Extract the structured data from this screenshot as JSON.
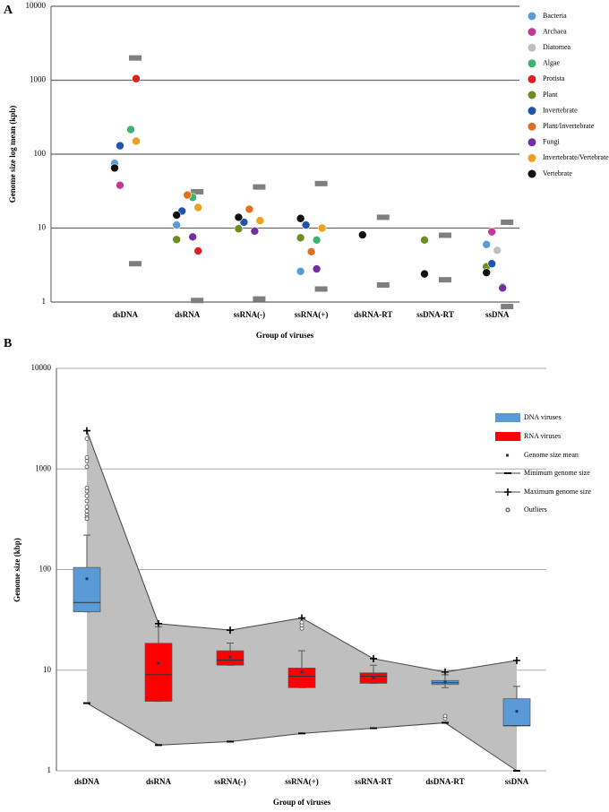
{
  "chart_data": [
    {
      "type": "scatter",
      "panel_label": "A",
      "y_label": "Genome size log mean (kpb)",
      "x_label": "Group of viruses",
      "categories": [
        "dsDNA",
        "dsRNA",
        "ssRNA(-)",
        "ssRNA(+)",
        "dsRNA-RT",
        "ssDNA-RT",
        "ssDNA"
      ],
      "log_scale": true,
      "grid": true,
      "legend_position": "right",
      "ylim": [
        1,
        10000
      ],
      "yticks": [
        1,
        10,
        100,
        1000,
        10000
      ],
      "range_color": "#7f7f7f",
      "range_max": [
        2000,
        31,
        36,
        40,
        14,
        8,
        12
      ],
      "range_min": [
        3.3,
        1.05,
        1.1,
        1.5,
        1.7,
        2,
        0.87
      ],
      "series": [
        {
          "name": "Bacteria",
          "color": "#5b9bd5",
          "values": [
            75,
            11,
            null,
            2.6,
            null,
            null,
            6
          ]
        },
        {
          "name": "Archaea",
          "color": "#c0399a",
          "values": [
            38,
            null,
            null,
            null,
            null,
            null,
            8.9
          ]
        },
        {
          "name": "Diatomea",
          "color": "#bfbfbf",
          "values": [
            null,
            null,
            null,
            null,
            null,
            null,
            5
          ]
        },
        {
          "name": "Algae",
          "color": "#3cb371",
          "values": [
            215,
            26,
            null,
            6.9,
            null,
            null,
            1.6
          ]
        },
        {
          "name": "Protista",
          "color": "#e02020",
          "values": [
            1050,
            4.9,
            null,
            null,
            null,
            null,
            null
          ]
        },
        {
          "name": "Plant",
          "color": "#6b8e23",
          "values": [
            null,
            7,
            9.8,
            7.4,
            null,
            6.9,
            3
          ]
        },
        {
          "name": "Invertebrate",
          "color": "#2255aa",
          "values": [
            130,
            17,
            12,
            11,
            null,
            null,
            3.3
          ]
        },
        {
          "name": "Plant/Invertebrate",
          "color": "#e07020",
          "values": [
            null,
            28,
            18,
            4.8,
            null,
            null,
            null
          ]
        },
        {
          "name": "Fungi",
          "color": "#7030a0",
          "values": [
            null,
            7.6,
            9.1,
            2.8,
            null,
            null,
            1.55
          ]
        },
        {
          "name": "Invertebrate/Vertebrate",
          "color": "#f0a020",
          "values": [
            150,
            19,
            12.6,
            10,
            null,
            null,
            null
          ]
        },
        {
          "name": "Vertebrate",
          "color": "#111111",
          "values": [
            65,
            15,
            14,
            13.5,
            8.1,
            2.4,
            2.5
          ]
        }
      ]
    },
    {
      "type": "box",
      "panel_label": "B",
      "y_label": "Genome size (kbp)",
      "x_label": "Group of viruses",
      "categories": [
        "dsDNA",
        "dsRNA",
        "ssRNA(-)",
        "ssRNA(+)",
        "ssRNA-RT",
        "dsDNA-RT",
        "ssDNA"
      ],
      "log_scale": true,
      "grid": true,
      "legend_position": "right",
      "ylim": [
        1,
        10000
      ],
      "yticks": [
        1,
        10,
        100,
        1000,
        10000
      ],
      "area_color": "#bfbfbf",
      "box_series": [
        {
          "name": "DNA viruses",
          "color": "#5b9bd5",
          "boxes": [
            {
              "whislo": 38,
              "q1": 38,
              "med": 47,
              "q3": 105,
              "whishi": 220,
              "mean": 81
            },
            null,
            null,
            null,
            null,
            {
              "whislo": 6.7,
              "q1": 7.2,
              "med": 7.5,
              "q3": 7.9,
              "whishi": 9,
              "mean": 7.6
            },
            {
              "whislo": 2.8,
              "q1": 2.8,
              "med": 2.8,
              "q3": 5.2,
              "whishi": 6.9,
              "mean": 3.9
            }
          ]
        },
        {
          "name": "RNA viruses",
          "color": "#ff0000",
          "boxes": [
            null,
            {
              "whislo": 4.9,
              "q1": 4.9,
              "med": 9,
              "q3": 18.5,
              "whishi": 27,
              "mean": 11.7
            },
            {
              "whislo": 11.2,
              "q1": 11.2,
              "med": 12.6,
              "q3": 15.6,
              "whishi": 18.6,
              "mean": 13.5
            },
            {
              "whislo": 6.7,
              "q1": 6.7,
              "med": 8.7,
              "q3": 10.5,
              "whishi": 15.6,
              "mean": 9.6
            },
            {
              "whislo": 7.4,
              "q1": 7.4,
              "med": 8.7,
              "q3": 9.4,
              "whishi": 11.2,
              "mean": 8.4
            },
            null,
            null
          ]
        }
      ],
      "mean": {
        "name": "Genome size mean",
        "color": "#1f3864"
      },
      "min_series": {
        "name": "Minimum genome size",
        "color": "#444444",
        "values": [
          4.7,
          1.8,
          1.95,
          2.35,
          2.65,
          3,
          1
        ]
      },
      "max_series": {
        "name": "Maximum genome size",
        "color": "#444444",
        "values": [
          2400,
          29,
          25,
          33,
          13,
          9.6,
          12.5
        ]
      },
      "outliers": {
        "name": "Outliers",
        "values": [
          [
            2000,
            1300,
            1200,
            1050,
            650,
            600,
            540,
            480,
            420,
            380,
            350,
            330,
            320
          ],
          [],
          [],
          [
            26,
            28,
            30
          ],
          [],
          [
            3.3,
            3.5
          ],
          []
        ]
      }
    }
  ]
}
